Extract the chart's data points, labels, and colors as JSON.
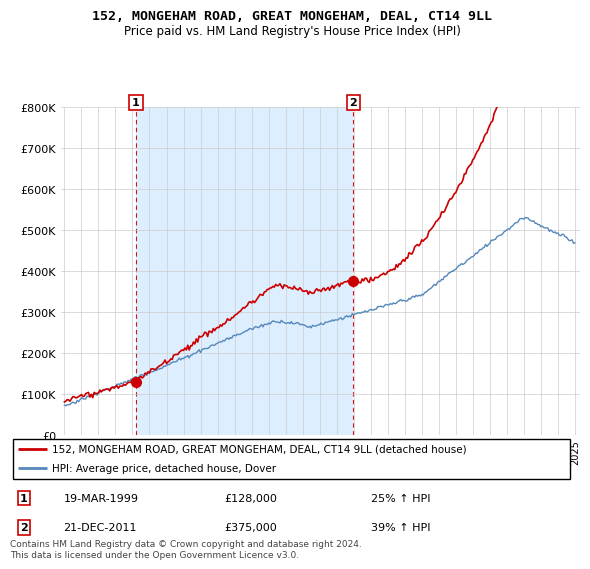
{
  "title": "152, MONGEHAM ROAD, GREAT MONGEHAM, DEAL, CT14 9LL",
  "subtitle": "Price paid vs. HM Land Registry's House Price Index (HPI)",
  "legend_line1": "152, MONGEHAM ROAD, GREAT MONGEHAM, DEAL, CT14 9LL (detached house)",
  "legend_line2": "HPI: Average price, detached house, Dover",
  "annotation1_date": "19-MAR-1999",
  "annotation1_price": "£128,000",
  "annotation1_hpi": "25% ↑ HPI",
  "annotation2_date": "21-DEC-2011",
  "annotation2_price": "£375,000",
  "annotation2_hpi": "39% ↑ HPI",
  "footer": "Contains HM Land Registry data © Crown copyright and database right 2024.\nThis data is licensed under the Open Government Licence v3.0.",
  "sale1_year": 1999.21,
  "sale1_value": 128000,
  "sale2_year": 2011.97,
  "sale2_value": 375000,
  "red_color": "#cc0000",
  "blue_color": "#5588bb",
  "shade_color": "#ddeeff",
  "ylim": [
    0,
    800000
  ],
  "xlim_start": 1994.8,
  "xlim_end": 2025.3,
  "yticks": [
    0,
    100000,
    200000,
    300000,
    400000,
    500000,
    600000,
    700000,
    800000
  ],
  "background_color": "#ffffff",
  "grid_color": "#cccccc",
  "figwidth": 6.0,
  "figheight": 5.6,
  "dpi": 100
}
